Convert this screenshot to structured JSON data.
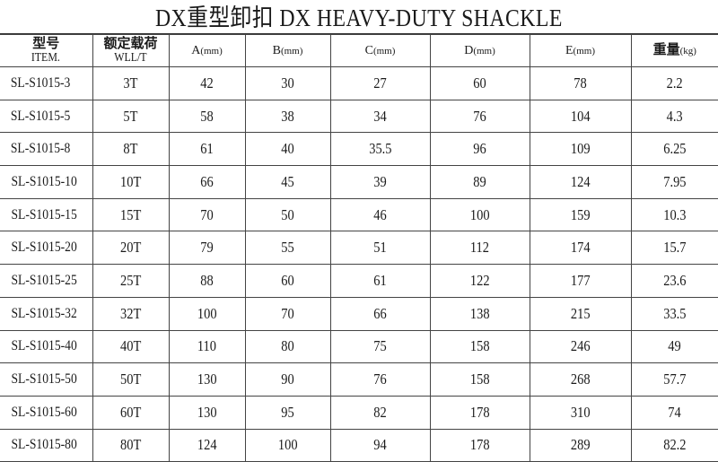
{
  "title": "DX重型卸扣  DX HEAVY-DUTY SHACKLE",
  "headers": {
    "item_cn": "型号",
    "item_en": "ITEM.",
    "wll_cn": "额定载荷",
    "wll_en": "WLL/T",
    "a": "A",
    "b": "B",
    "c": "C",
    "d": "D",
    "e": "E",
    "mm": "(mm)",
    "weight_cn": "重量",
    "kg": "(kg)"
  },
  "rows": [
    [
      "SL-S1015-3",
      "3T",
      "42",
      "30",
      "27",
      "60",
      "78",
      "2.2"
    ],
    [
      "SL-S1015-5",
      "5T",
      "58",
      "38",
      "34",
      "76",
      "104",
      "4.3"
    ],
    [
      "SL-S1015-8",
      "8T",
      "61",
      "40",
      "35.5",
      "96",
      "109",
      "6.25"
    ],
    [
      "SL-S1015-10",
      "10T",
      "66",
      "45",
      "39",
      "89",
      "124",
      "7.95"
    ],
    [
      "SL-S1015-15",
      "15T",
      "70",
      "50",
      "46",
      "100",
      "159",
      "10.3"
    ],
    [
      "SL-S1015-20",
      "20T",
      "79",
      "55",
      "51",
      "112",
      "174",
      "15.7"
    ],
    [
      "SL-S1015-25",
      "25T",
      "88",
      "60",
      "61",
      "122",
      "177",
      "23.6"
    ],
    [
      "SL-S1015-32",
      "32T",
      "100",
      "70",
      "66",
      "138",
      "215",
      "33.5"
    ],
    [
      "SL-S1015-40",
      "40T",
      "110",
      "80",
      "75",
      "158",
      "246",
      "49"
    ],
    [
      "SL-S1015-50",
      "50T",
      "130",
      "90",
      "76",
      "158",
      "268",
      "57.7"
    ],
    [
      "SL-S1015-60",
      "60T",
      "130",
      "95",
      "82",
      "178",
      "310",
      "74"
    ],
    [
      "SL-S1015-80",
      "80T",
      "124",
      "100",
      "94",
      "178",
      "289",
      "82.2"
    ]
  ]
}
